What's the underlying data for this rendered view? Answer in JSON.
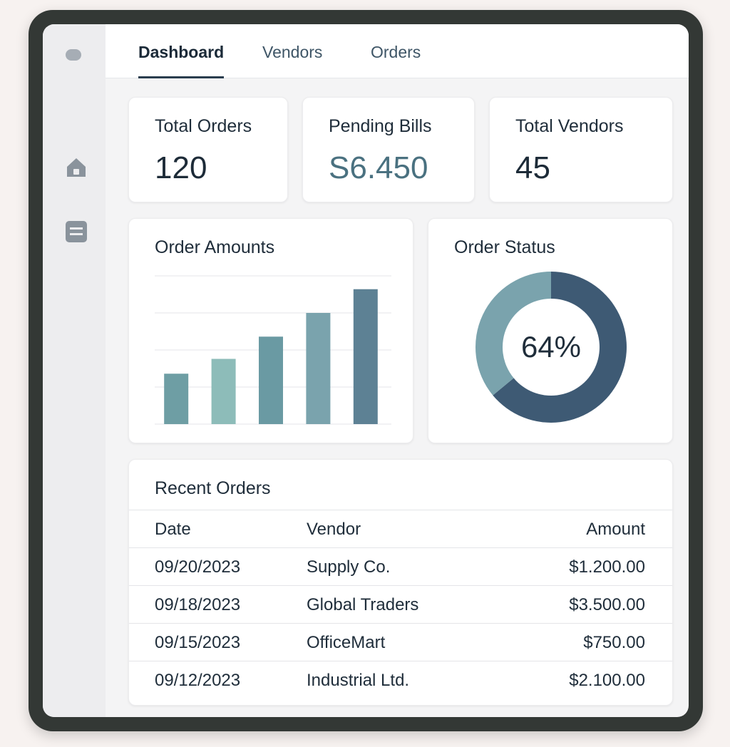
{
  "tabs": [
    {
      "label": "Dashboard",
      "active": true
    },
    {
      "label": "Vendors",
      "active": false
    },
    {
      "label": "Orders",
      "active": false
    }
  ],
  "sidebar": {
    "icons": [
      "home-icon",
      "list-icon"
    ]
  },
  "stats": [
    {
      "label": "Total Orders",
      "value": "120"
    },
    {
      "label": "Pending Bills",
      "value": "S6.450"
    },
    {
      "label": "Total Vendors",
      "value": "45"
    }
  ],
  "order_amounts": {
    "title": "Order Amounts"
  },
  "order_status": {
    "title": "Order Status",
    "value": "64%"
  },
  "recent_orders": {
    "title": "Recent Orders",
    "headers": {
      "date": "Date",
      "vendor": "Vendor",
      "amount": "Amount"
    },
    "rows": [
      {
        "date": "09/20/2023",
        "vendor": "Supply Co.",
        "amount": "$1.200.00"
      },
      {
        "date": "09/18/2023",
        "vendor": "Global Traders",
        "amount": "$3.500.00"
      },
      {
        "date": "09/15/2023",
        "vendor": "OfficeMart",
        "amount": "$750.00"
      },
      {
        "date": "09/12/2023",
        "vendor": "Industrial Ltd.",
        "amount": "$2.100.00"
      }
    ]
  },
  "chart_data": [
    {
      "type": "bar",
      "title": "Order Amounts",
      "values": [
        34,
        44,
        59,
        75,
        91
      ],
      "ylim": [
        0,
        100
      ],
      "grid": true,
      "colors": [
        "#6e9ea4",
        "#8dbcb9",
        "#6a9aa3",
        "#7aa3ad",
        "#5d8194"
      ]
    },
    {
      "type": "pie",
      "title": "Order Status",
      "values": [
        64,
        36
      ],
      "colors": [
        "#3e5a74",
        "#7aa3ad"
      ],
      "annotation": "64%"
    }
  ],
  "colors": {
    "accent": "#2a3d4e",
    "money": "#4a7180",
    "device_frame": "#333835"
  }
}
